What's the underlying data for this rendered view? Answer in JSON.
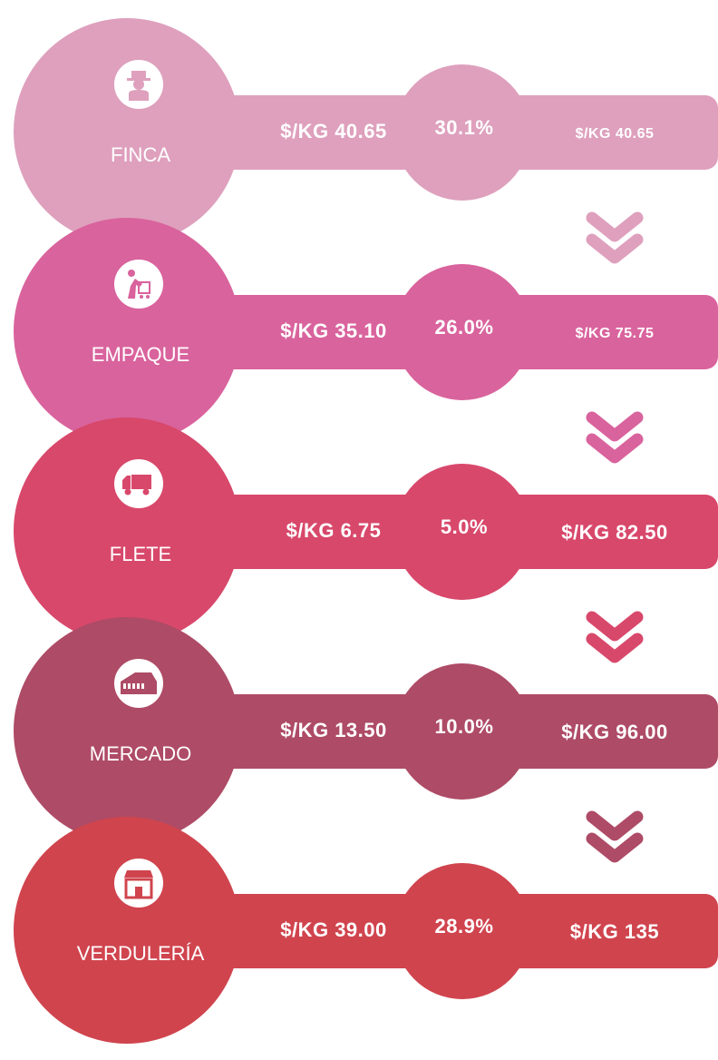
{
  "stages": [
    {
      "label": "FINCA",
      "cost": "$/KG 40.65",
      "share": "30.1%",
      "cumulative": "$/KG 40.65",
      "color": "#dea0bd"
    },
    {
      "label": "EMPAQUE",
      "cost": "$/KG 35.10",
      "share": "26.0%",
      "cumulative": "$/KG 75.75",
      "color": "#d9639d"
    },
    {
      "label": "FLETE",
      "cost": "$/KG 6.75",
      "share": "5.0%",
      "cumulative": "$/KG 82.50",
      "color": "#d8486b"
    },
    {
      "label": "MERCADO",
      "cost": "$/KG 13.50",
      "share": "10.0%",
      "cumulative": "$/KG 96.00",
      "color": "#ae4b66"
    },
    {
      "label": "VERDULERÍA",
      "cost": "$/KG 39.00",
      "share": "28.9%",
      "cumulative": "$/KG 135",
      "color": "#d0444e"
    }
  ]
}
